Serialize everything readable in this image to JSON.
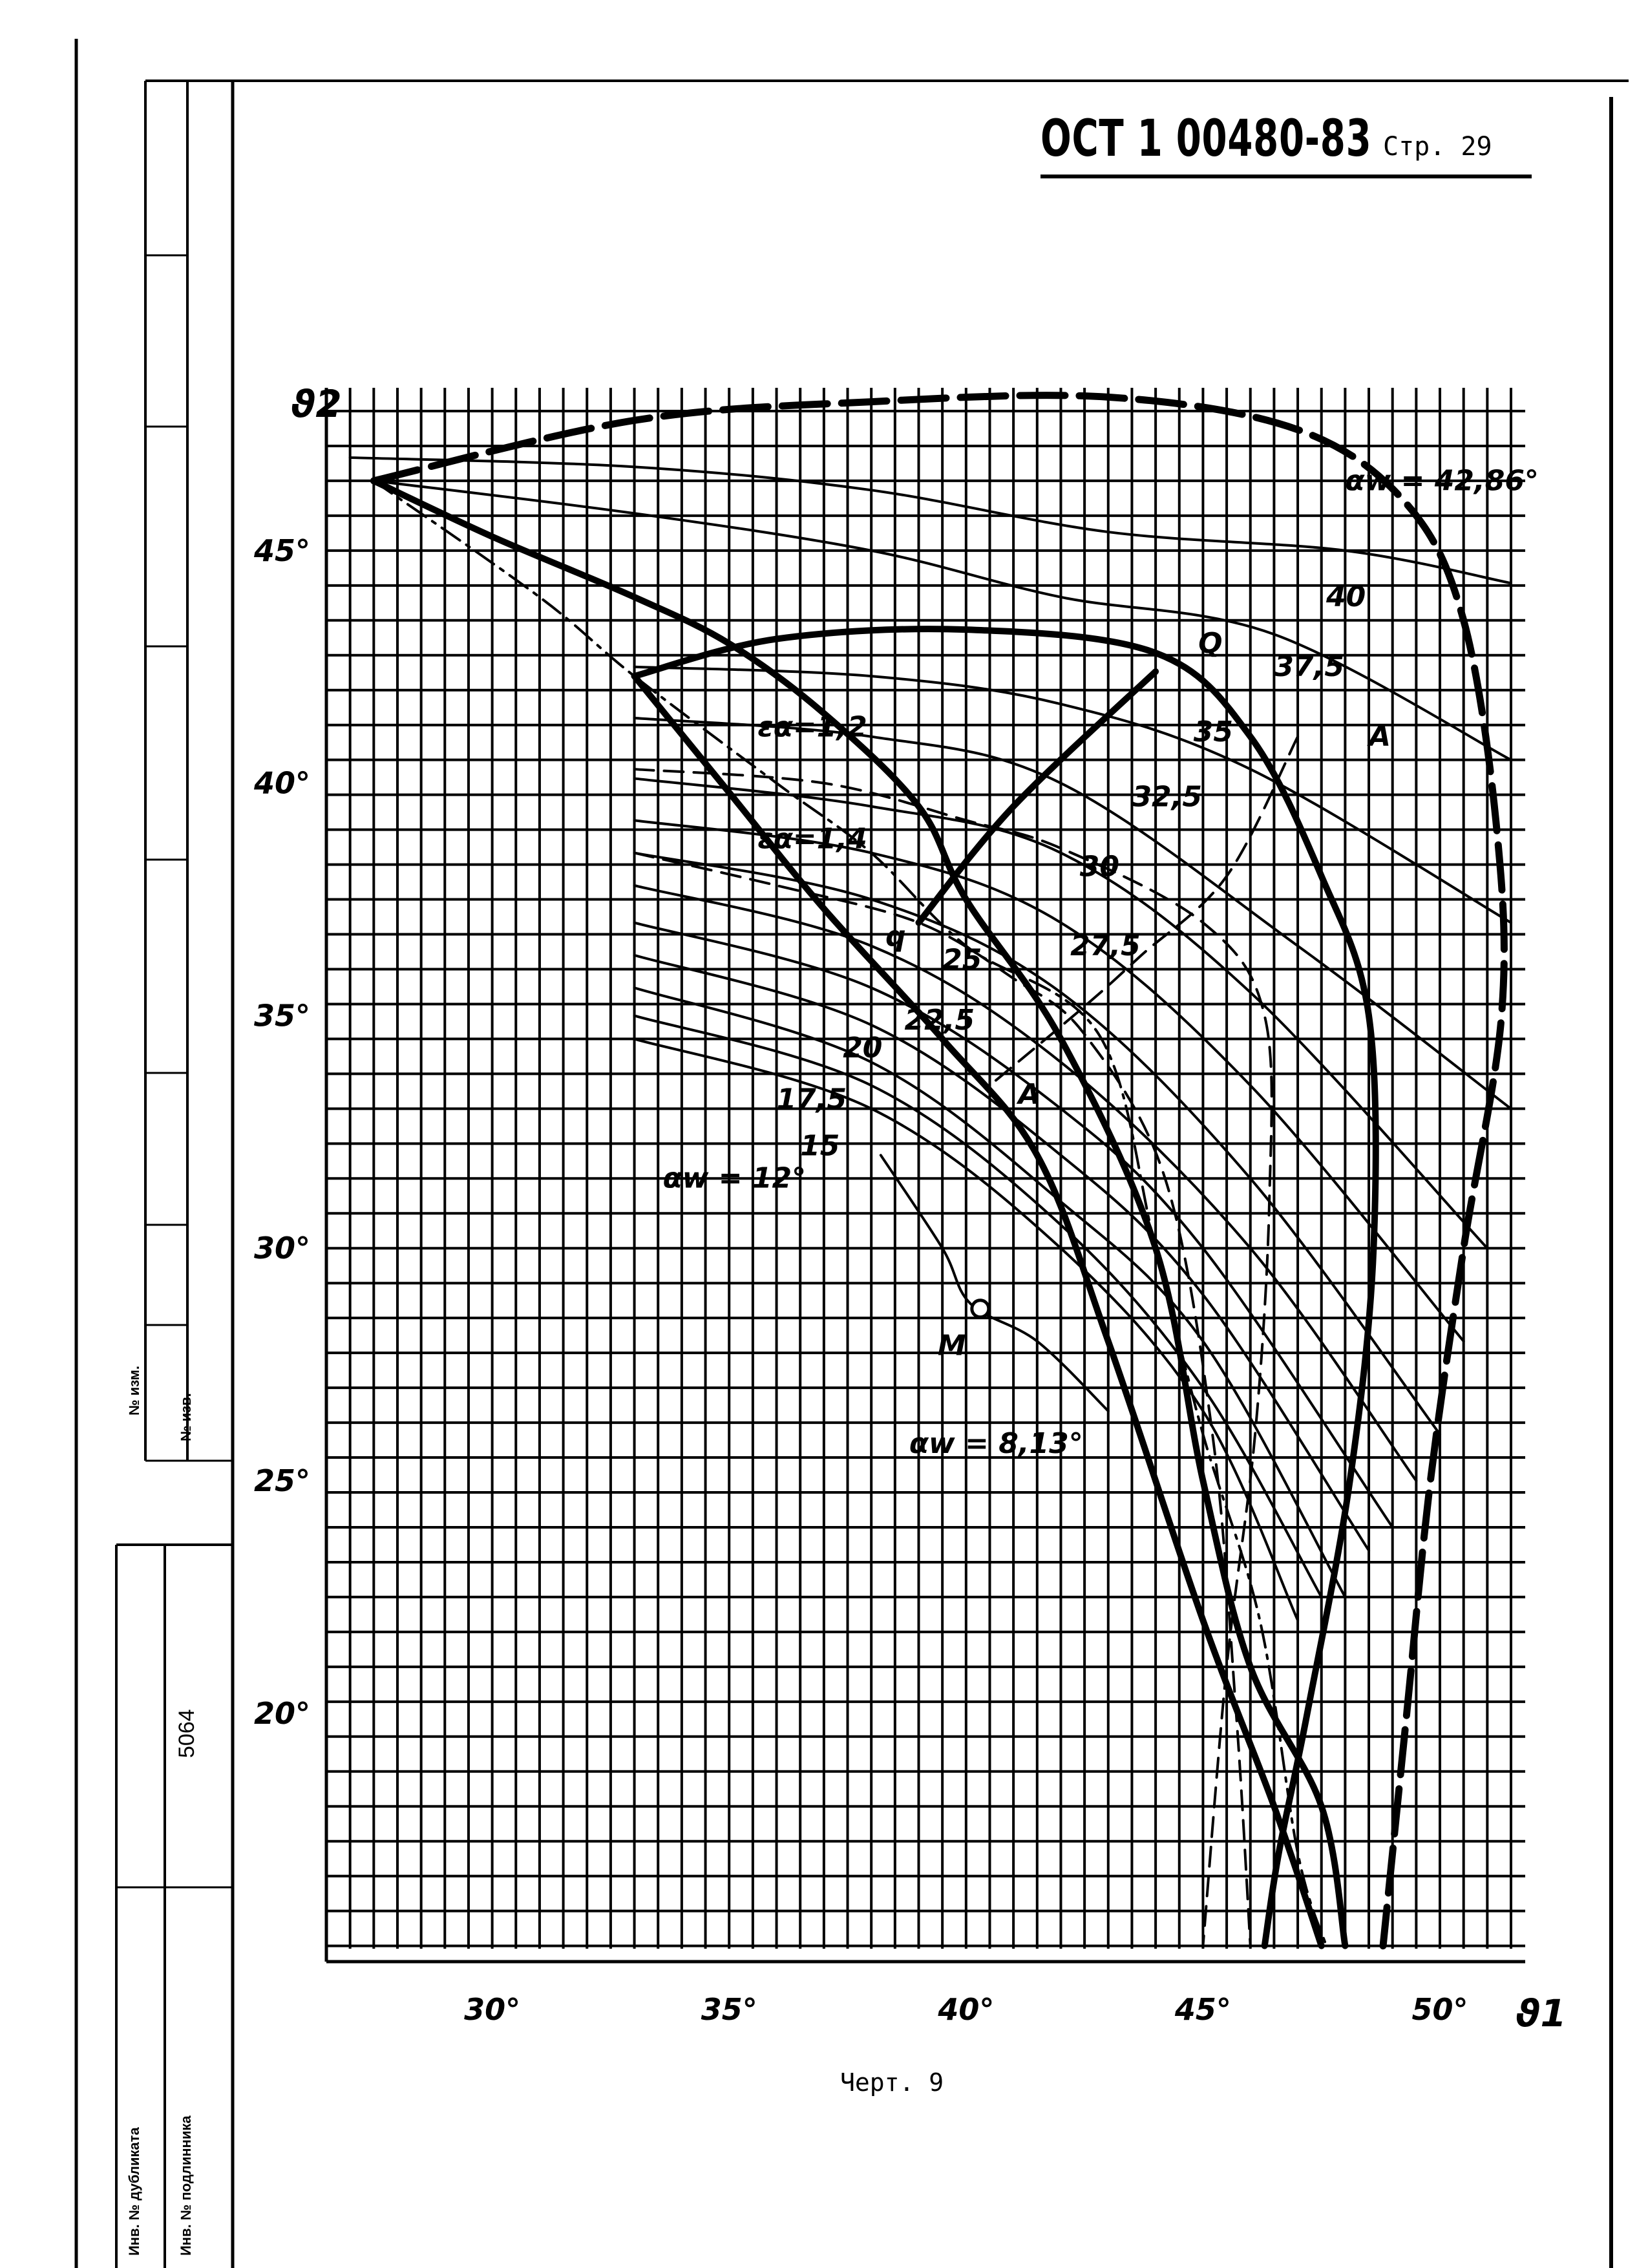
{
  "header": {
    "doc_number": "ОСТ 1 00480-83",
    "page_label": "Стр. 29"
  },
  "caption": "Черт. 9",
  "margin_block": {
    "izm_label": "№ изм.",
    "izv_label": "№ изв.",
    "inv_dubl_label": "Инв. № дубликата",
    "inv_podl_label": "Инв. № подлинника",
    "inv_value": "5064"
  },
  "chart_data": {
    "type": "line",
    "xlabel": "ϑ1",
    "ylabel": "ϑ2",
    "xlim": [
      26.5,
      51.8
    ],
    "ylim": [
      14.8,
      48.5
    ],
    "grid": true,
    "x_ticks": [
      "30°",
      "35°",
      "40°",
      "45°",
      "50°"
    ],
    "y_ticks": [
      "20°",
      "25°",
      "30°",
      "35°",
      "40°",
      "45°"
    ],
    "series": [
      {
        "name": "12°",
        "style": "thin",
        "points": [
          [
            33,
            34.5
          ],
          [
            38,
            33
          ],
          [
            42,
            30
          ],
          [
            45,
            26.5
          ],
          [
            47,
            22
          ]
        ]
      },
      {
        "name": "15",
        "style": "thin",
        "points": [
          [
            33,
            35
          ],
          [
            38,
            33.5
          ],
          [
            42,
            30.5
          ],
          [
            45,
            27
          ],
          [
            47.5,
            22.5
          ]
        ]
      },
      {
        "name": "17,5",
        "style": "thin",
        "points": [
          [
            33,
            35.6
          ],
          [
            38,
            34
          ],
          [
            42,
            31
          ],
          [
            45,
            28
          ],
          [
            48,
            22.5
          ]
        ]
      },
      {
        "name": "20",
        "style": "thin",
        "points": [
          [
            33,
            36.3
          ],
          [
            38,
            34.8
          ],
          [
            42,
            32
          ],
          [
            45,
            29
          ],
          [
            48.5,
            23.5
          ]
        ]
      },
      {
        "name": "22,5",
        "style": "thin",
        "points": [
          [
            33,
            37
          ],
          [
            38,
            35.6
          ],
          [
            42,
            33
          ],
          [
            45,
            30
          ],
          [
            49,
            24
          ]
        ]
      },
      {
        "name": "25",
        "style": "thin",
        "points": [
          [
            33,
            37.8
          ],
          [
            38,
            36.5
          ],
          [
            42,
            34
          ],
          [
            46,
            30
          ],
          [
            49.5,
            25
          ]
        ]
      },
      {
        "name": "27,5",
        "style": "thin",
        "points": [
          [
            33,
            38.5
          ],
          [
            38,
            37.5
          ],
          [
            42,
            35.5
          ],
          [
            46,
            31.5
          ],
          [
            50,
            26
          ]
        ]
      },
      {
        "name": "30",
        "style": "thin",
        "points": [
          [
            33,
            39.2
          ],
          [
            38,
            38.5
          ],
          [
            42,
            37
          ],
          [
            46,
            33.5
          ],
          [
            50.5,
            28
          ]
        ]
      },
      {
        "name": "32,5",
        "style": "thin",
        "points": [
          [
            33,
            40.1
          ],
          [
            38,
            39.5
          ],
          [
            42,
            38.5
          ],
          [
            46,
            35.5
          ],
          [
            51,
            30
          ]
        ]
      },
      {
        "name": "35",
        "style": "thin",
        "points": [
          [
            33,
            41.4
          ],
          [
            38,
            41
          ],
          [
            42,
            40
          ],
          [
            47,
            36.5
          ],
          [
            51.5,
            33
          ]
        ]
      },
      {
        "name": "37,5",
        "style": "thin",
        "points": [
          [
            33,
            42.5
          ],
          [
            38,
            42.3
          ],
          [
            42,
            41.7
          ],
          [
            46,
            40.3
          ],
          [
            51.5,
            37
          ]
        ]
      },
      {
        "name": "40",
        "style": "thin",
        "points": [
          [
            27.5,
            46.5
          ],
          [
            33,
            45.8
          ],
          [
            38,
            45
          ],
          [
            42,
            44
          ],
          [
            46.5,
            43.2
          ],
          [
            51.5,
            40.5
          ]
        ]
      },
      {
        "name": "",
        "style": "thin",
        "points": [
          [
            27,
            47
          ],
          [
            33,
            46.8
          ],
          [
            38,
            46.3
          ],
          [
            43,
            45.4
          ],
          [
            48,
            45
          ],
          [
            51.5,
            44.3
          ]
        ]
      },
      {
        "name": "42,86°",
        "style": "heavy-dash",
        "points": [
          [
            27.5,
            46.5
          ],
          [
            33,
            47.8
          ],
          [
            38,
            48.2
          ],
          [
            43,
            48.3
          ],
          [
            47,
            47.6
          ],
          [
            49.3,
            46
          ],
          [
            50.5,
            43.5
          ],
          [
            51.2,
            39
          ],
          [
            51.3,
            35
          ],
          [
            50.5,
            30
          ],
          [
            49.8,
            25
          ],
          [
            49.3,
            20
          ],
          [
            48.8,
            15
          ]
        ]
      },
      {
        "name": "",
        "style": "heavy",
        "points": [
          [
            27.5,
            46.5
          ],
          [
            30,
            45.3
          ],
          [
            33,
            44
          ],
          [
            35,
            43
          ],
          [
            37,
            41.5
          ],
          [
            39,
            39.5
          ],
          [
            40,
            37.5
          ],
          [
            42,
            34.5
          ],
          [
            44,
            30
          ],
          [
            45,
            25
          ],
          [
            46,
            21
          ],
          [
            47.5,
            18
          ],
          [
            48,
            15
          ]
        ]
      },
      {
        "name": "",
        "style": "heavy",
        "points": [
          [
            33,
            42.3
          ],
          [
            36,
            43.1
          ],
          [
            40,
            43.3
          ],
          [
            44,
            42.8
          ],
          [
            46,
            41
          ],
          [
            47.5,
            38
          ],
          [
            48.5,
            35
          ],
          [
            48.6,
            30
          ],
          [
            48.1,
            25
          ],
          [
            47.2,
            20
          ],
          [
            46.6,
            17
          ],
          [
            46.3,
            15
          ]
        ]
      },
      {
        "name": "",
        "style": "heavy",
        "points": [
          [
            33,
            42.3
          ],
          [
            35,
            39.8
          ],
          [
            37,
            37.3
          ],
          [
            39.5,
            34.5
          ],
          [
            41.5,
            32
          ],
          [
            43,
            28
          ],
          [
            45,
            22
          ],
          [
            46.5,
            18
          ],
          [
            47.5,
            15
          ]
        ]
      },
      {
        "name": "",
        "style": "heavy",
        "points": [
          [
            44,
            42.4
          ],
          [
            41,
            39.5
          ],
          [
            39,
            37
          ]
        ]
      },
      {
        "name": "1,2",
        "style": "dash",
        "points": [
          [
            33,
            40.3
          ],
          [
            37,
            40
          ],
          [
            40,
            39.2
          ],
          [
            42,
            38.6
          ],
          [
            45,
            37
          ],
          [
            46.3,
            35
          ],
          [
            46.4,
            31
          ],
          [
            46.1,
            26
          ],
          [
            45.5,
            21
          ],
          [
            45,
            15
          ]
        ]
      },
      {
        "name": "1,4",
        "style": "dash",
        "points": [
          [
            33,
            38.5
          ],
          [
            36,
            37.8
          ],
          [
            39,
            37
          ],
          [
            41,
            35.8
          ],
          [
            42.5,
            34.6
          ],
          [
            44.2,
            31.5
          ],
          [
            45.2,
            26
          ],
          [
            45.7,
            20
          ],
          [
            46,
            15
          ]
        ]
      },
      {
        "name": "",
        "style": "dash",
        "points": [
          [
            47,
            41
          ],
          [
            45.5,
            38
          ],
          [
            43.7,
            36.3
          ],
          [
            42.5,
            35.2
          ],
          [
            40.5,
            33.5
          ]
        ]
      },
      {
        "name": "",
        "style": "dash-dot",
        "points": [
          [
            27.5,
            46.5
          ],
          [
            31,
            44
          ],
          [
            33,
            42.3
          ],
          [
            36,
            40
          ],
          [
            38,
            38.5
          ],
          [
            40,
            36.5
          ],
          [
            42.8,
            34.6
          ],
          [
            44,
            30
          ],
          [
            45,
            26
          ],
          [
            46.2,
            22
          ],
          [
            47,
            17
          ],
          [
            47.6,
            15
          ]
        ]
      },
      {
        "name": "8,13°",
        "style": "thin",
        "points": [
          [
            38.2,
            32
          ],
          [
            39.5,
            30
          ],
          [
            40.1,
            28.8
          ],
          [
            41.5,
            28
          ],
          [
            43,
            26.5
          ]
        ]
      }
    ],
    "annotations": [
      {
        "text": "αw = 42,86°",
        "x": 48.0,
        "y": 46.3
      },
      {
        "text": "40",
        "x": 47.6,
        "y": 43.8
      },
      {
        "text": "Q",
        "x": 44.9,
        "y": 42.8
      },
      {
        "text": "37,5",
        "x": 46.5,
        "y": 42.3
      },
      {
        "text": "A",
        "x": 48.5,
        "y": 40.8
      },
      {
        "text": "35",
        "x": 44.8,
        "y": 40.9
      },
      {
        "text": "32,5",
        "x": 43.5,
        "y": 39.5
      },
      {
        "text": "εα=1,2",
        "x": 35.6,
        "y": 41.0
      },
      {
        "text": "30",
        "x": 42.4,
        "y": 38.0
      },
      {
        "text": "εα=1,4",
        "x": 35.6,
        "y": 38.6
      },
      {
        "text": "q",
        "x": 38.3,
        "y": 36.5
      },
      {
        "text": "25",
        "x": 39.5,
        "y": 36.0
      },
      {
        "text": "27,5",
        "x": 42.2,
        "y": 36.3
      },
      {
        "text": "22,5",
        "x": 38.7,
        "y": 34.7
      },
      {
        "text": "20",
        "x": 37.4,
        "y": 34.1
      },
      {
        "text": "A",
        "x": 41.1,
        "y": 33.1
      },
      {
        "text": "17,5",
        "x": 36.0,
        "y": 33.0
      },
      {
        "text": "15",
        "x": 36.5,
        "y": 32.0
      },
      {
        "text": "αw = 12°",
        "x": 33.6,
        "y": 31.3
      },
      {
        "text": "M",
        "x": 39.4,
        "y": 27.7
      },
      {
        "text": "αw = 8,13°",
        "x": 38.8,
        "y": 25.6
      }
    ],
    "markers": [
      {
        "label": "M",
        "x": 40.3,
        "y": 28.7
      }
    ]
  }
}
